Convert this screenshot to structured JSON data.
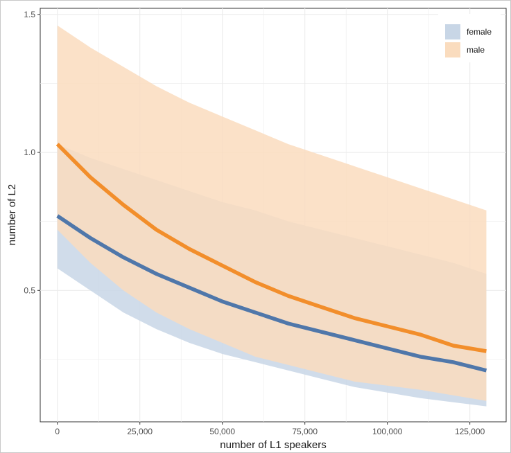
{
  "chart_data": {
    "type": "line",
    "xlabel": "number of L1 speakers",
    "ylabel": "number of L2",
    "xlim": [
      -5200,
      136000
    ],
    "ylim": [
      0.024,
      1.522
    ],
    "x_ticks": [
      0,
      25000,
      50000,
      75000,
      100000,
      125000
    ],
    "x_tick_labels": [
      "0",
      "25,000",
      "50,000",
      "75,000",
      "100,000",
      "125,000"
    ],
    "y_ticks": [
      0.5,
      1.0,
      1.5
    ],
    "y_tick_labels": [
      "0.5",
      "1.0",
      "1.5"
    ],
    "grid": true,
    "legend_position": "top-right",
    "x": [
      0,
      10000,
      20000,
      30000,
      40000,
      50000,
      60000,
      70000,
      80000,
      90000,
      100000,
      110000,
      120000,
      130000
    ],
    "series": [
      {
        "name": "female",
        "color": "#4f77aa",
        "band_color": "#c8d6e6",
        "values": [
          0.77,
          0.69,
          0.62,
          0.56,
          0.51,
          0.46,
          0.42,
          0.38,
          0.35,
          0.32,
          0.29,
          0.26,
          0.24,
          0.21
        ],
        "lower": [
          0.58,
          0.5,
          0.42,
          0.36,
          0.31,
          0.27,
          0.24,
          0.21,
          0.18,
          0.15,
          0.13,
          0.11,
          0.095,
          0.08
        ],
        "upper": [
          1.03,
          0.98,
          0.94,
          0.9,
          0.86,
          0.82,
          0.79,
          0.75,
          0.72,
          0.69,
          0.66,
          0.63,
          0.6,
          0.56
        ]
      },
      {
        "name": "male",
        "color": "#f28e2b",
        "band_color": "#fadcbe",
        "values": [
          1.03,
          0.91,
          0.81,
          0.72,
          0.65,
          0.59,
          0.53,
          0.48,
          0.44,
          0.4,
          0.37,
          0.34,
          0.3,
          0.28
        ],
        "lower": [
          0.72,
          0.6,
          0.5,
          0.42,
          0.36,
          0.31,
          0.26,
          0.23,
          0.2,
          0.17,
          0.155,
          0.14,
          0.12,
          0.1
        ],
        "upper": [
          1.46,
          1.38,
          1.31,
          1.24,
          1.18,
          1.13,
          1.08,
          1.03,
          0.99,
          0.95,
          0.91,
          0.87,
          0.83,
          0.79
        ]
      }
    ]
  }
}
